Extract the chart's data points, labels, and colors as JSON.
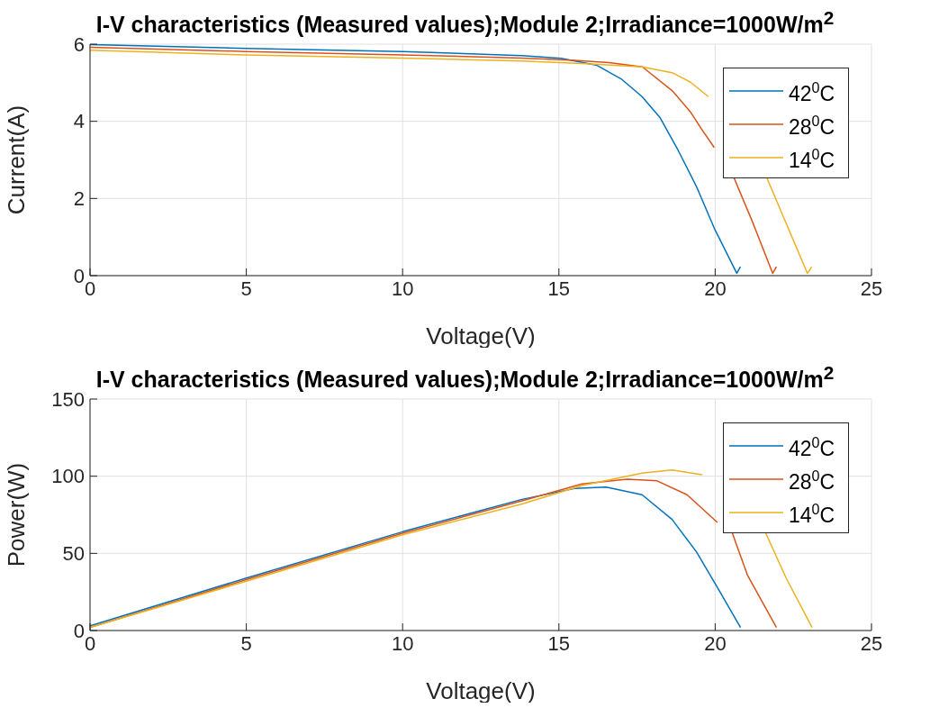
{
  "chart_data": [
    {
      "type": "line",
      "title": "I-V characteristics (Measured values);Module 2;Irradiance=1000W/m$^{2}$",
      "xlabel": "Voltage(V)",
      "ylabel": "Current(A)",
      "xlim": [
        0,
        25
      ],
      "xticks": [
        0,
        5,
        10,
        15,
        20,
        25
      ],
      "ylim": [
        0,
        6
      ],
      "yticks": [
        0,
        2,
        4,
        6
      ],
      "grid": true,
      "legend": "top right",
      "series": [
        {
          "name": "42$^{0}$C",
          "color": "#0072bd",
          "x": [
            0,
            5,
            10,
            13.82,
            15.07,
            16.22,
            16.99,
            17.66,
            18.24,
            18.82,
            19.4,
            19.97,
            20.69,
            20.81
          ],
          "values": [
            5.99,
            5.89,
            5.81,
            5.7,
            5.63,
            5.45,
            5.1,
            4.64,
            4.09,
            3.24,
            2.31,
            1.23,
            0.06,
            0.23
          ]
        },
        {
          "name": "28$^{0}$C",
          "color": "#d95319",
          "x": [
            0,
            5,
            10,
            13.82,
            15.5,
            16.6,
            17.67,
            18.63,
            19.2,
            19.58,
            19.97,
            20.35,
            20.6,
            21.2,
            21.84,
            21.96
          ],
          "values": [
            5.92,
            5.81,
            5.72,
            5.64,
            5.58,
            5.52,
            5.41,
            4.79,
            4.25,
            3.78,
            3.32,
            null,
            2.54,
            1.38,
            0.06,
            0.23
          ]
        },
        {
          "name": "14$^{0}$C",
          "color": "#edb120",
          "x": [
            0,
            5,
            10,
            13.82,
            15.74,
            17.66,
            18.62,
            19.2,
            19.78,
            20.26,
            21.65,
            22.18,
            22.95,
            23.09
          ],
          "values": [
            5.84,
            5.72,
            5.64,
            5.56,
            5.5,
            5.41,
            5.26,
            5.02,
            4.64,
            null,
            2.54,
            1.53,
            0.06,
            0.23
          ]
        }
      ]
    },
    {
      "type": "line",
      "title": "I-V characteristics (Measured values);Module 2;Irradiance=1000W/m$^{2}$",
      "xlabel": "Voltage(V)",
      "ylabel": "Power(W)",
      "xlim": [
        0,
        25
      ],
      "xticks": [
        0,
        5,
        10,
        15,
        20,
        25
      ],
      "ylim": [
        0,
        150
      ],
      "yticks": [
        0,
        50,
        100,
        150
      ],
      "grid": true,
      "legend": "top right",
      "series": [
        {
          "name": "42$^{0}$C",
          "color": "#0072bd",
          "x": [
            0,
            5,
            10,
            13.82,
            15.5,
            16.51,
            17.66,
            18.62,
            19.4,
            20.07,
            20.81
          ],
          "values": [
            3,
            34,
            64,
            85,
            92,
            93,
            88,
            72,
            51,
            28,
            2
          ]
        },
        {
          "name": "28$^{0}$C",
          "color": "#d95319",
          "x": [
            0,
            5,
            10,
            13.82,
            15.74,
            17.18,
            18.14,
            19.1,
            20.07,
            20.26,
            20.55,
            21.03,
            21.96
          ],
          "values": [
            2,
            33,
            63,
            84,
            95,
            98,
            97,
            88,
            70,
            null,
            63,
            36,
            2
          ]
        },
        {
          "name": "14$^{0}$C",
          "color": "#edb120",
          "x": [
            0,
            5,
            10,
            13.82,
            15.74,
            17.66,
            18.62,
            19.58,
            20.26,
            21.62,
            22.27,
            23.1
          ],
          "values": [
            2,
            32,
            62,
            82,
            94,
            102,
            104,
            101,
            null,
            63,
            34,
            2
          ]
        }
      ]
    }
  ]
}
